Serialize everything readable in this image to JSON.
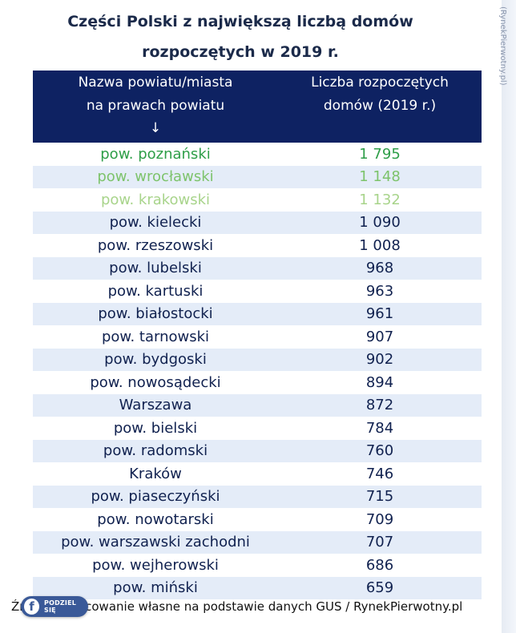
{
  "title_line1": "Części Polski z największą liczbą domów",
  "title_line2": "rozpoczętych w 2019 r.",
  "watermark": "(RynekPierwotny.pl)",
  "colors": {
    "header_bg": "#0e2262",
    "rank1": "#2e9e48",
    "rank2": "#7dc36b",
    "rank3": "#a8d48b",
    "text": "#10214f",
    "alt_row": "#e4ecf8"
  },
  "chart_data": {
    "type": "table",
    "columns": [
      "Nazwa powiatu/miasta na prawach powiatu",
      "Liczba rozpoczętych domów (2019 r.)"
    ],
    "sort_indicator": "↓",
    "rows": [
      {
        "name": "pow. poznański",
        "value": "1 795"
      },
      {
        "name": "pow. wrocławski",
        "value": "1 148"
      },
      {
        "name": "pow. krakowski",
        "value": "1 132"
      },
      {
        "name": "pow. kielecki",
        "value": "1 090"
      },
      {
        "name": "pow. rzeszowski",
        "value": "1 008"
      },
      {
        "name": "pow. lubelski",
        "value": "968"
      },
      {
        "name": "pow. kartuski",
        "value": "963"
      },
      {
        "name": "pow. białostocki",
        "value": "961"
      },
      {
        "name": "pow. tarnowski",
        "value": "907"
      },
      {
        "name": "pow. bydgoski",
        "value": "902"
      },
      {
        "name": "pow. nowosądecki",
        "value": "894"
      },
      {
        "name": "Warszawa",
        "value": "872"
      },
      {
        "name": "pow. bielski",
        "value": "784"
      },
      {
        "name": "pow. radomski",
        "value": "760"
      },
      {
        "name": "Kraków",
        "value": "746"
      },
      {
        "name": "pow. piaseczyński",
        "value": "715"
      },
      {
        "name": "pow. nowotarski",
        "value": "709"
      },
      {
        "name": "pow. warszawski zachodni",
        "value": "707"
      },
      {
        "name": "pow. wejherowski",
        "value": "686"
      },
      {
        "name": "pow. miński",
        "value": "659"
      }
    ]
  },
  "header": {
    "col1_line1": "Nazwa powiatu/miasta",
    "col1_line2": "na prawach powiatu",
    "col2_line1": "Liczba rozpoczętych",
    "col2_line2": "domów (2019 r.)"
  },
  "footer": "Źródło: opracowanie własne na podstawie danych GUS / RynekPierwotny.pl",
  "share": {
    "icon": "facebook-icon",
    "label": "PODZIEL SIĘ"
  }
}
